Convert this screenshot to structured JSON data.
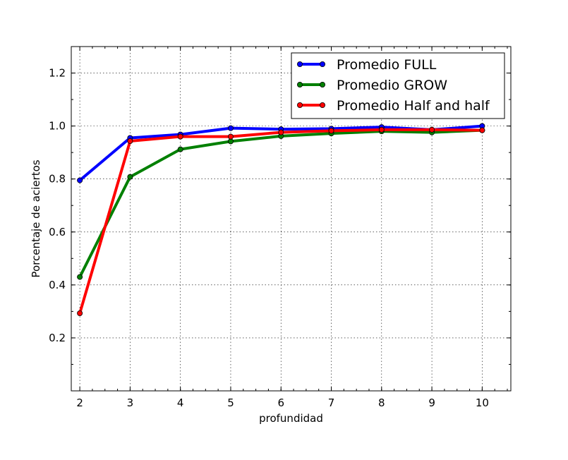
{
  "chart_data": {
    "type": "line",
    "title": "",
    "xlabel": "profundidad",
    "ylabel": "Porcentaje de aciertos",
    "xlim": [
      1.83,
      10.57
    ],
    "ylim": [
      0.0,
      1.3
    ],
    "x_ticks": [
      "2",
      "3",
      "4",
      "5",
      "6",
      "7",
      "8",
      "9",
      "10"
    ],
    "y_ticks": [
      "0.2",
      "0.4",
      "0.6",
      "0.8",
      "1.0",
      "1.2"
    ],
    "grid": true,
    "legend_position": "upper-right",
    "x": [
      2,
      3,
      4,
      5,
      6,
      7,
      8,
      9,
      10
    ],
    "series": [
      {
        "name": "Promedio FULL",
        "color": "#0000ff",
        "values": [
          0.795,
          0.955,
          0.968,
          0.992,
          0.988,
          0.99,
          0.996,
          0.986,
          1.0
        ]
      },
      {
        "name": "Promedio GROW",
        "color": "#008000",
        "values": [
          0.43,
          0.808,
          0.912,
          0.942,
          0.962,
          0.972,
          0.98,
          0.976,
          0.984
        ]
      },
      {
        "name": "Promedio Half and half",
        "color": "#ff0000",
        "values": [
          0.293,
          0.943,
          0.96,
          0.96,
          0.976,
          0.982,
          0.986,
          0.986,
          0.984
        ]
      }
    ]
  }
}
